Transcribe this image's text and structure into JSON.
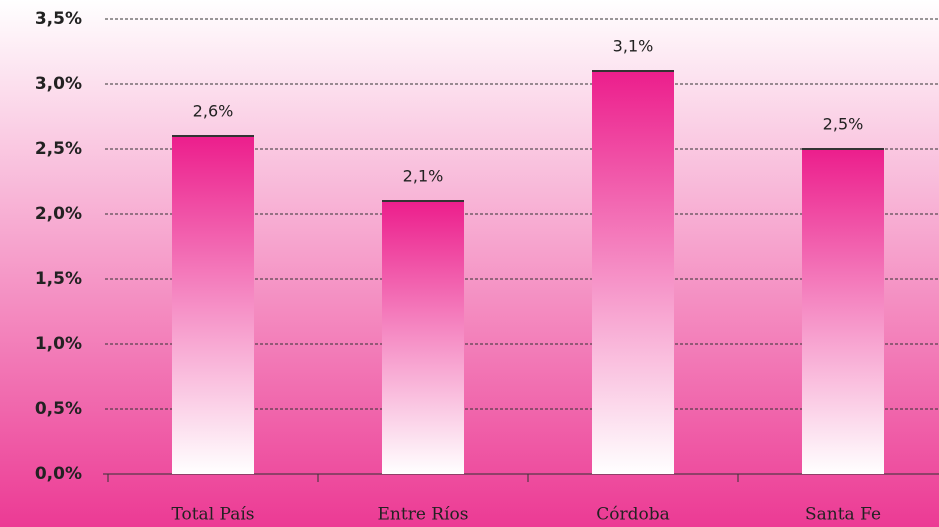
{
  "chart_data": {
    "type": "bar",
    "categories": [
      "Total País",
      "Entre Ríos",
      "Córdoba",
      "Santa Fe"
    ],
    "values": [
      2.6,
      2.1,
      3.1,
      2.5
    ],
    "value_labels": [
      "2,6%",
      "2,1%",
      "3,1%",
      "2,5%"
    ],
    "color": "#ec1e8c",
    "ylim": [
      0,
      3.5
    ],
    "yticks": [
      {
        "value": 0,
        "label": "0,0%"
      },
      {
        "value": 0.5,
        "label": "0,5%"
      },
      {
        "value": 1,
        "label": "1,0%"
      },
      {
        "value": 1.5,
        "label": "1,5%"
      },
      {
        "value": 2,
        "label": "2,0%"
      },
      {
        "value": 2.5,
        "label": "2,5%"
      },
      {
        "value": 3,
        "label": "3,0%"
      },
      {
        "value": 3.5,
        "label": "3,5%"
      }
    ],
    "grid": true
  }
}
